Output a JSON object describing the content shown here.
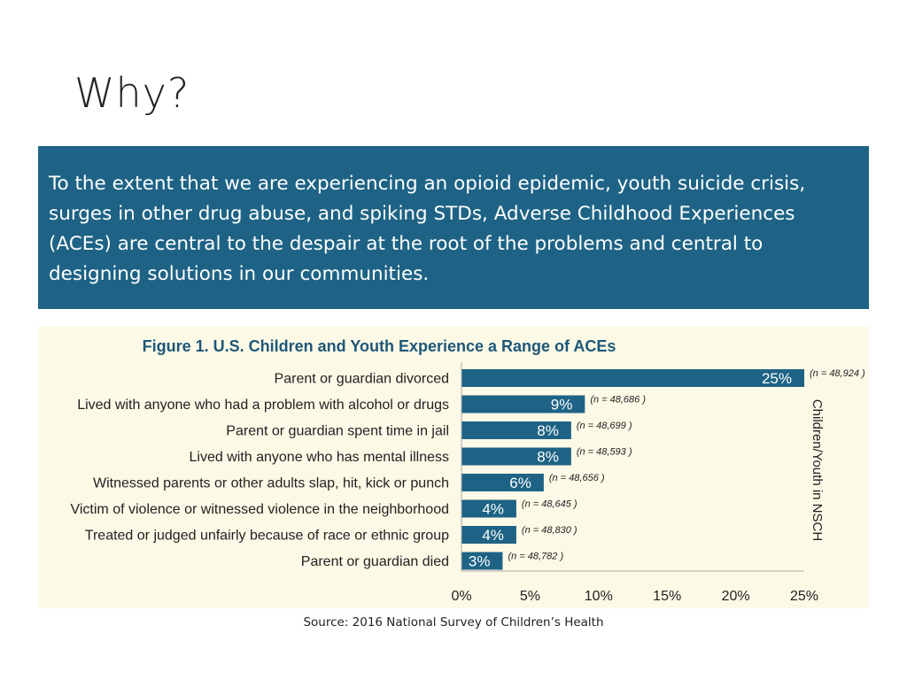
{
  "slide": {
    "title": "Why?",
    "body": "To the extent that we are experiencing an opioid epidemic, youth suicide crisis, surges in other drug abuse, and spiking STDs, Adverse Childhood Experiences (ACEs) are central to the despair at the root of the problems and central to designing solutions in our communities.",
    "source": "Source: 2016 National Survey of Children’s Health"
  },
  "colors": {
    "box": "#1e6385",
    "bar": "#1e6385",
    "panel": "#fcf9e6"
  },
  "chart_data": {
    "type": "bar",
    "orientation": "horizontal",
    "title": "Figure 1. U.S. Children and Youth Experience a Range of ACEs",
    "categories": [
      "Parent or guardian divorced",
      "Lived with anyone who had a problem with alcohol or drugs",
      "Parent or guardian spent time in jail",
      "Lived with anyone who has mental illness",
      "Witnessed parents or other adults slap, hit, kick or punch",
      "Victim of violence or witnessed violence in the neighborhood",
      "Treated or judged unfairly because of race or ethnic group",
      "Parent or guardian died"
    ],
    "values": [
      25,
      9,
      8,
      8,
      6,
      4,
      4,
      3
    ],
    "value_labels": [
      "25%",
      "9%",
      "8%",
      "8%",
      "6%",
      "4%",
      "4%",
      "3%"
    ],
    "sample_sizes": [
      "(n = 48,924 )",
      "(n = 48,686 )",
      "(n = 48,699 )",
      "(n = 48,593 )",
      "(n = 48,656 )",
      "(n = 48,645 )",
      "(n = 48,830 )",
      "(n = 48,782 )"
    ],
    "xlim": [
      0,
      25
    ],
    "xticks": [
      "0%",
      "5%",
      "10%",
      "15%",
      "20%",
      "25%"
    ],
    "side_label": "Children/Youth in NSCH",
    "grid": false
  }
}
